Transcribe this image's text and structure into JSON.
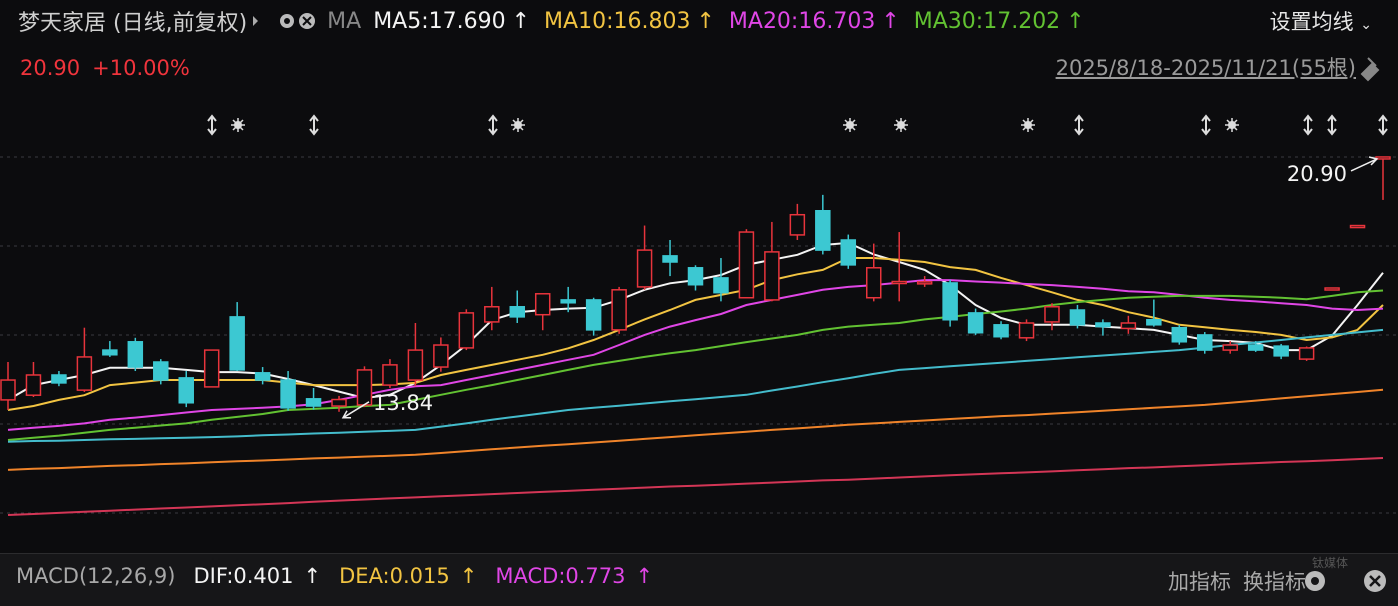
{
  "header": {
    "title": "梦天家居 (日线,前复权)",
    "ma_label": "MA",
    "settings": "设置均线"
  },
  "quote": {
    "price": "20.90",
    "change": "+10.00%",
    "range": "2025/8/18-2025/11/21(55根)"
  },
  "chart_data": {
    "type": "candlestick",
    "ylim": [
      10.15,
      21.37
    ],
    "up_color": "#e8343c",
    "down_color": "#3cc8d2",
    "open": [
      14.17,
      14.3,
      14.86,
      14.44,
      15.55,
      15.78,
      15.22,
      14.78,
      14.53,
      16.47,
      14.92,
      14.72,
      14.2,
      14.0,
      14.03,
      14.58,
      14.72,
      15.08,
      15.61,
      16.33,
      16.75,
      16.53,
      16.94,
      16.94,
      16.11,
      17.3,
      18.16,
      17.83,
      17.55,
      17.0,
      16.94,
      18.74,
      19.41,
      18.6,
      17.0,
      17.4,
      17.4,
      17.41,
      16.58,
      16.25,
      15.89,
      16.33,
      16.66,
      16.3,
      16.15,
      16.39,
      16.17,
      15.97,
      15.55,
      15.69,
      15.66,
      15.3,
      17.27,
      19.0,
      20.9
    ],
    "high": [
      15.22,
      15.22,
      14.97,
      16.17,
      15.8,
      15.89,
      15.3,
      14.97,
      15.55,
      16.88,
      15.08,
      14.97,
      14.5,
      14.28,
      15.1,
      15.3,
      16.3,
      15.9,
      16.68,
      17.3,
      17.2,
      17.11,
      17.3,
      17.0,
      17.3,
      19.0,
      18.6,
      17.9,
      18.1,
      18.9,
      19.1,
      19.6,
      19.85,
      18.75,
      18.5,
      18.82,
      17.6,
      17.5,
      16.7,
      16.35,
      16.4,
      16.85,
      16.8,
      16.4,
      16.5,
      16.95,
      16.25,
      16.05,
      15.8,
      15.8,
      15.72,
      15.65,
      17.27,
      19.0,
      20.9
    ],
    "low": [
      13.89,
      14.25,
      14.55,
      14.39,
      15.36,
      14.97,
      14.6,
      13.97,
      14.53,
      14.97,
      14.6,
      13.87,
      13.9,
      13.84,
      13.97,
      14.5,
      14.55,
      14.95,
      15.55,
      16.1,
      16.3,
      16.1,
      16.6,
      15.95,
      16.0,
      17.22,
      17.6,
      17.2,
      16.9,
      17.0,
      16.9,
      18.6,
      18.2,
      17.8,
      16.9,
      16.9,
      17.3,
      16.2,
      15.97,
      15.85,
      15.8,
      16.1,
      16.15,
      15.95,
      16.0,
      16.2,
      15.7,
      15.45,
      15.45,
      15.5,
      15.3,
      15.25,
      17.27,
      19.0,
      19.71
    ],
    "close": [
      14.72,
      14.86,
      14.64,
      15.36,
      15.42,
      15.08,
      14.72,
      14.09,
      15.55,
      15.0,
      14.72,
      13.95,
      14.0,
      14.18,
      15.0,
      15.14,
      15.55,
      15.69,
      16.58,
      16.75,
      16.47,
      17.11,
      16.86,
      16.11,
      17.22,
      18.32,
      17.99,
      17.36,
      17.14,
      18.82,
      18.27,
      19.3,
      18.32,
      17.91,
      17.83,
      17.45,
      17.44,
      16.39,
      16.03,
      15.92,
      16.3,
      16.75,
      16.25,
      16.2,
      16.3,
      16.25,
      15.78,
      15.55,
      15.69,
      15.55,
      15.39,
      15.61,
      17.27,
      19.0,
      20.9
    ],
    "max_label": {
      "value": 20.9,
      "label": "20.90"
    },
    "min_label": 13.84,
    "series": [
      {
        "name": "MA5:17.690",
        "arrow": "↑",
        "color": "#f4f4f4",
        "values": [
          14.17,
          14.58,
          14.72,
          14.86,
          15.06,
          15.06,
          15.06,
          15.0,
          14.94,
          14.94,
          14.9,
          14.75,
          14.58,
          14.4,
          14.22,
          14.31,
          14.64,
          15.14,
          15.69,
          16.38,
          16.6,
          16.66,
          16.7,
          16.72,
          16.94,
          17.22,
          17.4,
          17.49,
          17.63,
          17.91,
          18.05,
          18.19,
          18.46,
          18.52,
          18.2,
          17.99,
          17.77,
          17.35,
          16.8,
          16.44,
          16.25,
          16.25,
          16.25,
          16.2,
          16.16,
          16.11,
          15.97,
          15.83,
          15.8,
          15.75,
          15.55,
          15.55,
          15.95,
          16.8,
          17.69
        ]
      },
      {
        "name": "MA10:16.803",
        "arrow": "↑",
        "color": "#f2c442",
        "values": [
          13.89,
          14.0,
          14.17,
          14.3,
          14.58,
          14.65,
          14.72,
          14.72,
          14.72,
          14.72,
          14.72,
          14.65,
          14.58,
          14.58,
          14.58,
          14.6,
          14.64,
          14.86,
          15.0,
          15.14,
          15.28,
          15.42,
          15.6,
          15.83,
          16.11,
          16.4,
          16.66,
          16.94,
          17.08,
          17.22,
          17.49,
          17.65,
          17.77,
          18.1,
          18.1,
          18.05,
          17.99,
          17.85,
          17.77,
          17.55,
          17.35,
          17.15,
          16.94,
          16.8,
          16.6,
          16.45,
          16.25,
          16.18,
          16.11,
          16.05,
          15.97,
          15.83,
          15.9,
          16.11,
          16.8
        ]
      },
      {
        "name": "MA20:16.703",
        "arrow": "↑",
        "color": "#e046e6",
        "values": [
          13.34,
          13.4,
          13.45,
          13.52,
          13.62,
          13.68,
          13.75,
          13.82,
          13.89,
          13.92,
          13.95,
          13.99,
          14.05,
          14.17,
          14.31,
          14.45,
          14.55,
          14.58,
          14.72,
          14.86,
          15.0,
          15.14,
          15.28,
          15.42,
          15.69,
          15.97,
          16.2,
          16.38,
          16.55,
          16.8,
          16.94,
          17.08,
          17.22,
          17.3,
          17.35,
          17.42,
          17.49,
          17.49,
          17.45,
          17.42,
          17.38,
          17.35,
          17.3,
          17.25,
          17.18,
          17.15,
          17.08,
          17.0,
          16.94,
          16.9,
          16.85,
          16.8,
          16.7,
          16.66,
          16.7
        ]
      },
      {
        "name": "MA30:17.202",
        "arrow": "↑",
        "color": "#62c232",
        "values": [
          13.06,
          13.12,
          13.18,
          13.26,
          13.34,
          13.4,
          13.46,
          13.52,
          13.62,
          13.7,
          13.78,
          13.89,
          13.92,
          13.95,
          14.0,
          14.03,
          14.17,
          14.31,
          14.45,
          14.58,
          14.72,
          14.86,
          15.0,
          15.14,
          15.25,
          15.36,
          15.46,
          15.55,
          15.66,
          15.77,
          15.87,
          15.97,
          16.11,
          16.2,
          16.25,
          16.3,
          16.4,
          16.47,
          16.55,
          16.62,
          16.7,
          16.8,
          16.88,
          16.94,
          17.0,
          17.03,
          17.05,
          17.05,
          17.05,
          17.03,
          17.0,
          16.96,
          17.05,
          17.15,
          17.2
        ]
      },
      {
        "color": "#44bccc",
        "values": [
          13.01,
          13.03,
          13.04,
          13.06,
          13.08,
          13.09,
          13.11,
          13.12,
          13.14,
          13.16,
          13.19,
          13.21,
          13.24,
          13.26,
          13.29,
          13.31,
          13.34,
          13.43,
          13.52,
          13.62,
          13.71,
          13.8,
          13.89,
          13.95,
          14.01,
          14.07,
          14.13,
          14.19,
          14.25,
          14.31,
          14.43,
          14.54,
          14.66,
          14.77,
          14.89,
          15.0,
          15.05,
          15.1,
          15.15,
          15.2,
          15.25,
          15.3,
          15.35,
          15.4,
          15.45,
          15.5,
          15.55,
          15.62,
          15.69,
          15.76,
          15.83,
          15.9,
          15.97,
          16.04,
          16.11
        ]
      },
      {
        "color": "#f0842a",
        "values": [
          12.23,
          12.26,
          12.28,
          12.31,
          12.34,
          12.36,
          12.39,
          12.41,
          12.44,
          12.47,
          12.49,
          12.52,
          12.55,
          12.57,
          12.6,
          12.62,
          12.65,
          12.7,
          12.75,
          12.8,
          12.85,
          12.9,
          12.94,
          12.99,
          13.04,
          13.09,
          13.14,
          13.19,
          13.24,
          13.29,
          13.34,
          13.38,
          13.43,
          13.48,
          13.52,
          13.56,
          13.6,
          13.64,
          13.68,
          13.72,
          13.75,
          13.79,
          13.83,
          13.87,
          13.91,
          13.95,
          13.99,
          14.03,
          14.09,
          14.15,
          14.21,
          14.27,
          14.33,
          14.39,
          14.45
        ]
      },
      {
        "color": "#d43656",
        "values": [
          10.98,
          11.01,
          11.04,
          11.07,
          11.1,
          11.13,
          11.16,
          11.19,
          11.22,
          11.25,
          11.28,
          11.31,
          11.35,
          11.38,
          11.41,
          11.44,
          11.47,
          11.5,
          11.53,
          11.56,
          11.59,
          11.62,
          11.65,
          11.68,
          11.71,
          11.74,
          11.77,
          11.79,
          11.82,
          11.85,
          11.88,
          11.91,
          11.94,
          11.96,
          11.99,
          12.02,
          12.05,
          12.08,
          12.11,
          12.14,
          12.16,
          12.19,
          12.22,
          12.25,
          12.28,
          12.3,
          12.33,
          12.36,
          12.39,
          12.42,
          12.45,
          12.47,
          12.5,
          12.53,
          12.56
        ]
      }
    ]
  },
  "footer": {
    "indicator": "MACD(12,26,9)",
    "items": [
      {
        "text": "DIF:0.401",
        "arrow": "↑",
        "color": "#f4f4f4"
      },
      {
        "text": "DEA:0.015",
        "arrow": "↑",
        "color": "#f2c442"
      },
      {
        "text": "MACD:0.773",
        "arrow": "↑",
        "color": "#e046e6"
      }
    ],
    "buttons": [
      "加指标",
      "换指标"
    ],
    "watermark": "钛媒体"
  }
}
